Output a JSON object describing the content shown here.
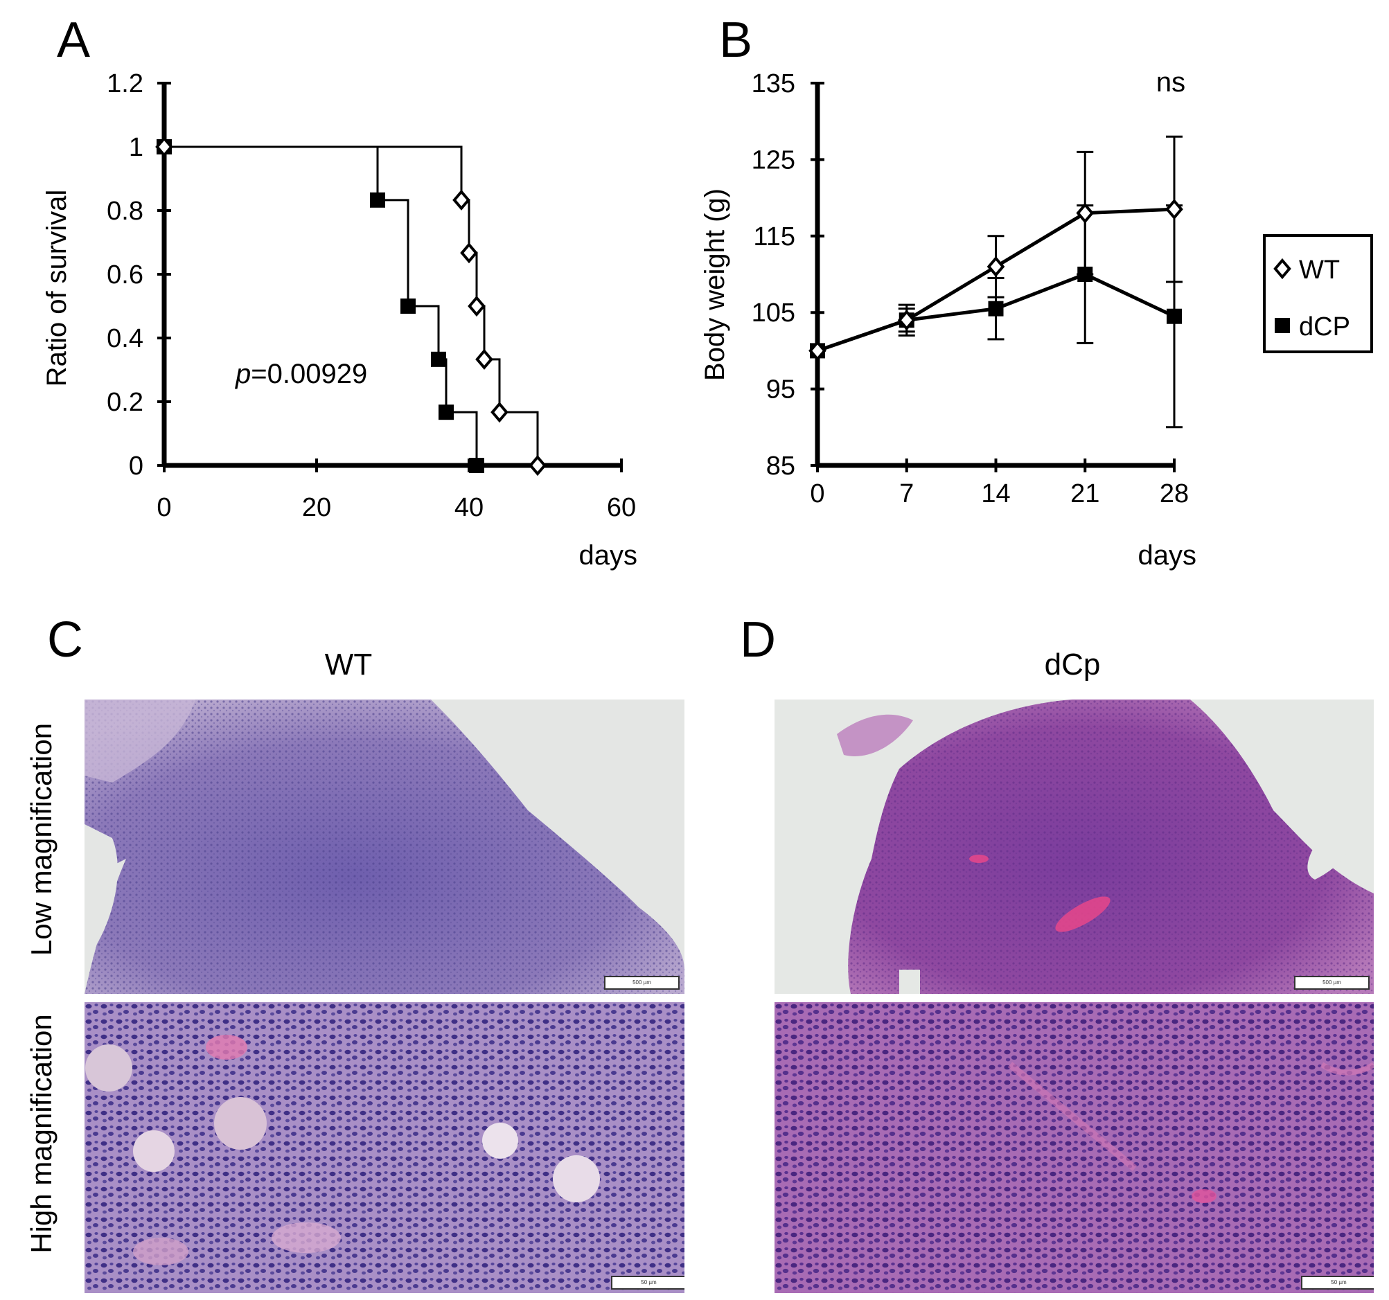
{
  "panels": {
    "A": "A",
    "B": "B",
    "C": "C",
    "D": "D"
  },
  "colors": {
    "low_wt": "#8e7ab8",
    "high_wt": "#7d63ad",
    "low_dcp": "#8a3f9a",
    "high_dcp": "#7e3e9c",
    "background_tile": "#e6e8e6"
  },
  "histology": {
    "col_titles": [
      "WT",
      "dCp"
    ],
    "row_labels": [
      "Low magnification",
      "High magnification"
    ],
    "scale_low": "500 µm",
    "scale_high": "50 µm"
  },
  "chart_data": [
    {
      "type": "line",
      "subtype": "kaplan-meier",
      "ylabel": "Ratio of survival",
      "xlabel": "days",
      "xlim": [
        0,
        60
      ],
      "ylim": [
        0,
        1.2
      ],
      "xticks": [
        "0",
        "20",
        "40",
        "60"
      ],
      "yticks": [
        "0",
        "0.2",
        "0.4",
        "0.6",
        "0.8",
        "1",
        "1.2"
      ],
      "annotation": "p=0.00929",
      "series": [
        {
          "marker": "diamond-open",
          "steps": [
            [
              0,
              1
            ],
            [
              39,
              1
            ],
            [
              39,
              0.833
            ],
            [
              40,
              0.833
            ],
            [
              40,
              0.667
            ],
            [
              41,
              0.667
            ],
            [
              41,
              0.5
            ],
            [
              42,
              0.5
            ],
            [
              42,
              0.333
            ],
            [
              44,
              0.333
            ],
            [
              44,
              0.167
            ],
            [
              49,
              0.167
            ],
            [
              49,
              0
            ]
          ],
          "points": [
            [
              0,
              1
            ],
            [
              39,
              0.833
            ],
            [
              40,
              0.667
            ],
            [
              41,
              0.5
            ],
            [
              42,
              0.333
            ],
            [
              44,
              0.167
            ],
            [
              49,
              0
            ]
          ]
        },
        {
          "marker": "square-filled",
          "steps": [
            [
              0,
              1
            ],
            [
              28,
              1
            ],
            [
              28,
              0.833
            ],
            [
              32,
              0.833
            ],
            [
              32,
              0.5
            ],
            [
              36,
              0.5
            ],
            [
              36,
              0.333
            ],
            [
              37,
              0.333
            ],
            [
              37,
              0.167
            ],
            [
              41,
              0.167
            ],
            [
              41,
              0
            ]
          ],
          "points": [
            [
              0,
              1
            ],
            [
              28,
              0.833
            ],
            [
              32,
              0.5
            ],
            [
              36,
              0.333
            ],
            [
              37,
              0.167
            ],
            [
              41,
              0
            ]
          ]
        }
      ]
    },
    {
      "type": "line",
      "ylabel": "Body weight (g)",
      "xlabel": "days",
      "xlim": [
        0,
        28
      ],
      "ylim": [
        85,
        135
      ],
      "xticks": [
        "0",
        "7",
        "14",
        "21",
        "28"
      ],
      "yticks": [
        "85",
        "95",
        "105",
        "115",
        "125",
        "135"
      ],
      "annotation": "ns",
      "legend_position": "right",
      "series": [
        {
          "name": "WT",
          "marker": "diamond-open",
          "x": [
            0,
            7,
            14,
            21,
            28
          ],
          "y": [
            100,
            104,
            111,
            118,
            118.5
          ],
          "err": [
            0,
            1.5,
            4,
            8,
            9.5
          ]
        },
        {
          "name": "dCP",
          "marker": "square-filled",
          "x": [
            0,
            7,
            14,
            21,
            28
          ],
          "y": [
            100,
            104,
            105.5,
            110,
            104.5
          ],
          "err": [
            0,
            2,
            4,
            9,
            14.5
          ]
        }
      ]
    }
  ]
}
